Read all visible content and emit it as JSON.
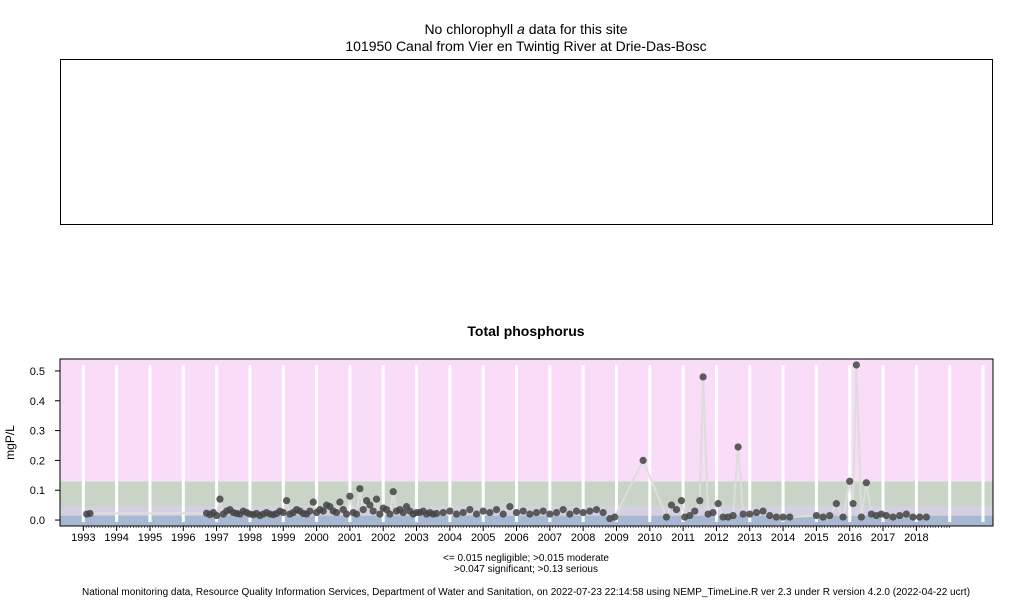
{
  "top_panel": {
    "title_prefix": "No chlorophyll",
    "title_italic": "a",
    "title_suffix": "data for this site",
    "site": "101950 Canal from Vier en Twintig River at Drie-Das-Bosc"
  },
  "colors": {
    "serious": "#f9dcf7",
    "significant": "#c8d4c5",
    "moderate": "#d4d0e0",
    "negligible": "#a9b8d2",
    "points": "#444444",
    "line": "#dddddd",
    "gridline": "#ffffff"
  },
  "chart_data": {
    "type": "scatter",
    "title": "Total phosphorus",
    "ylabel": "mgP/L",
    "xlabel": "",
    "xlim": [
      1992.3,
      2020.3
    ],
    "ylim": [
      -0.02,
      0.54
    ],
    "yticks": [
      0.0,
      0.1,
      0.2,
      0.3,
      0.4,
      0.5
    ],
    "ytick_labels": [
      "0.0",
      "0.1",
      "0.2",
      "0.3",
      "0.4",
      "0.5"
    ],
    "xticks": [
      1993,
      1994,
      1995,
      1996,
      1997,
      1998,
      1999,
      2000,
      2001,
      2002,
      2003,
      2004,
      2005,
      2006,
      2007,
      2008,
      2009,
      2010,
      2011,
      2012,
      2013,
      2014,
      2015,
      2016,
      2017,
      2018
    ],
    "xtick_labels": [
      "1993",
      "1994",
      "1995",
      "1996",
      "1997",
      "1998",
      "1999",
      "2000",
      "2001",
      "2002",
      "2003",
      "2004",
      "2005",
      "2006",
      "2007",
      "2008",
      "2009",
      "2010",
      "2011",
      "2012",
      "2013",
      "2014",
      "2015",
      "2016",
      "2017",
      "2018"
    ],
    "bands": [
      {
        "name": "negligible",
        "from": -0.02,
        "to": 0.015
      },
      {
        "name": "moderate",
        "from": 0.015,
        "to": 0.047
      },
      {
        "name": "significant",
        "from": 0.047,
        "to": 0.13
      },
      {
        "name": "serious",
        "from": 0.13,
        "to": 0.54
      }
    ],
    "grid": true,
    "points": {
      "x": [
        1993.1,
        1993.2,
        1996.7,
        1996.8,
        1996.9,
        1997.0,
        1997.1,
        1997.2,
        1997.3,
        1997.4,
        1997.5,
        1997.6,
        1997.7,
        1997.8,
        1997.9,
        1998.0,
        1998.1,
        1998.2,
        1998.3,
        1998.4,
        1998.5,
        1998.6,
        1998.7,
        1998.8,
        1998.9,
        1999.0,
        1999.1,
        1999.2,
        1999.3,
        1999.4,
        1999.5,
        1999.6,
        1999.7,
        1999.8,
        1999.9,
        2000.0,
        2000.1,
        2000.2,
        2000.3,
        2000.4,
        2000.5,
        2000.6,
        2000.7,
        2000.8,
        2000.9,
        2001.0,
        2001.1,
        2001.2,
        2001.3,
        2001.4,
        2001.5,
        2001.6,
        2001.7,
        2001.8,
        2001.9,
        2002.0,
        2002.1,
        2002.2,
        2002.3,
        2002.4,
        2002.5,
        2002.6,
        2002.7,
        2002.8,
        2002.9,
        2003.0,
        2003.1,
        2003.2,
        2003.3,
        2003.4,
        2003.5,
        2003.6,
        2003.8,
        2004.0,
        2004.2,
        2004.4,
        2004.6,
        2004.8,
        2005.0,
        2005.2,
        2005.4,
        2005.6,
        2005.8,
        2006.0,
        2006.2,
        2006.4,
        2006.6,
        2006.8,
        2007.0,
        2007.2,
        2007.4,
        2007.6,
        2007.8,
        2008.0,
        2008.2,
        2008.4,
        2008.6,
        2008.8,
        2008.95,
        2009.8,
        2010.5,
        2010.65,
        2010.8,
        2010.95,
        2011.05,
        2011.2,
        2011.35,
        2011.5,
        2011.6,
        2011.75,
        2011.9,
        2012.05,
        2012.2,
        2012.35,
        2012.5,
        2012.65,
        2012.8,
        2013.0,
        2013.2,
        2013.4,
        2013.6,
        2013.8,
        2014.0,
        2014.2,
        2015.0,
        2015.2,
        2015.4,
        2015.6,
        2015.8,
        2016.0,
        2016.1,
        2016.2,
        2016.35,
        2016.5,
        2016.65,
        2016.8,
        2016.95,
        2017.1,
        2017.3,
        2017.5,
        2017.7,
        2017.9,
        2018.1,
        2018.3
      ],
      "y": [
        0.02,
        0.022,
        0.023,
        0.018,
        0.025,
        0.015,
        0.07,
        0.02,
        0.03,
        0.035,
        0.025,
        0.022,
        0.02,
        0.03,
        0.025,
        0.02,
        0.018,
        0.022,
        0.015,
        0.02,
        0.025,
        0.02,
        0.018,
        0.022,
        0.03,
        0.025,
        0.065,
        0.02,
        0.025,
        0.035,
        0.03,
        0.022,
        0.02,
        0.03,
        0.06,
        0.025,
        0.035,
        0.03,
        0.05,
        0.045,
        0.03,
        0.025,
        0.06,
        0.035,
        0.02,
        0.08,
        0.025,
        0.02,
        0.105,
        0.035,
        0.065,
        0.05,
        0.03,
        0.07,
        0.02,
        0.04,
        0.035,
        0.02,
        0.095,
        0.03,
        0.035,
        0.025,
        0.045,
        0.03,
        0.02,
        0.025,
        0.025,
        0.03,
        0.02,
        0.025,
        0.02,
        0.022,
        0.025,
        0.03,
        0.02,
        0.025,
        0.035,
        0.02,
        0.03,
        0.025,
        0.035,
        0.02,
        0.045,
        0.025,
        0.03,
        0.02,
        0.025,
        0.03,
        0.02,
        0.025,
        0.035,
        0.02,
        0.03,
        0.025,
        0.03,
        0.035,
        0.025,
        0.005,
        0.01,
        0.2,
        0.01,
        0.05,
        0.035,
        0.065,
        0.01,
        0.015,
        0.03,
        0.065,
        0.48,
        0.02,
        0.025,
        0.055,
        0.01,
        0.01,
        0.015,
        0.245,
        0.02,
        0.02,
        0.025,
        0.03,
        0.015,
        0.01,
        0.01,
        0.01,
        0.015,
        0.01,
        0.015,
        0.055,
        0.01,
        0.13,
        0.055,
        0.52,
        0.01,
        0.125,
        0.02,
        0.015,
        0.02,
        0.015,
        0.01,
        0.015,
        0.02,
        0.01,
        0.01,
        0.01
      ]
    }
  },
  "legend": {
    "line1": "<= 0.015 negligible; >0.015 moderate",
    "line2": ">0.047 significant; >0.13 serious"
  },
  "footer": "National monitoring data, Resource Quality Information Services, Department of Water and Sanitation, on 2022-07-23 22:14:58 using NEMP_TimeLine.R ver 2.3 under R version 4.2.0 (2022-04-22 ucrt)"
}
